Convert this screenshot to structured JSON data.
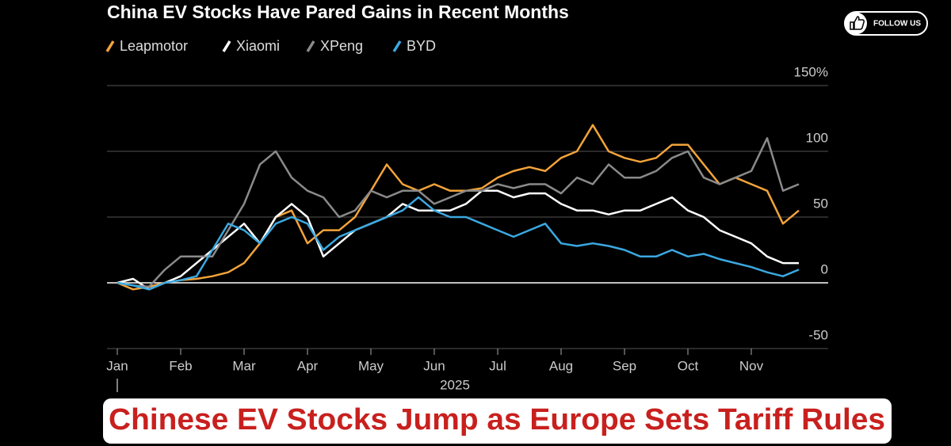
{
  "chart_data": {
    "type": "line",
    "title": "China EV Stocks Have Pared Gains in Recent Months",
    "categories": [
      "Jan",
      null,
      null,
      null,
      "Feb",
      null,
      null,
      null,
      "Mar",
      null,
      null,
      null,
      "Apr",
      null,
      null,
      null,
      "May",
      null,
      null,
      null,
      "Jun",
      null,
      null,
      null,
      "Jul",
      null,
      null,
      null,
      "Aug",
      null,
      null,
      null,
      "Sep",
      null,
      null,
      null,
      "Oct",
      null,
      null,
      null,
      "Nov",
      null,
      null,
      null
    ],
    "x_axis_label": "2025",
    "series": [
      {
        "name": "Leapmotor",
        "color": "#f2a33a",
        "values": [
          0,
          -5,
          -3,
          0,
          2,
          3,
          5,
          8,
          15,
          30,
          50,
          55,
          30,
          40,
          40,
          50,
          70,
          90,
          75,
          70,
          75,
          70,
          70,
          72,
          80,
          85,
          88,
          85,
          95,
          100,
          120,
          100,
          95,
          92,
          95,
          105,
          105,
          90,
          75,
          80,
          75,
          70,
          45,
          55
        ]
      },
      {
        "name": "Xiaomi",
        "color": "#ffffff",
        "values": [
          0,
          3,
          -5,
          0,
          5,
          15,
          25,
          35,
          45,
          30,
          50,
          60,
          50,
          20,
          30,
          40,
          45,
          50,
          60,
          55,
          55,
          55,
          60,
          70,
          70,
          65,
          68,
          68,
          60,
          55,
          55,
          52,
          55,
          55,
          60,
          65,
          55,
          50,
          40,
          35,
          30,
          20,
          15,
          15
        ]
      },
      {
        "name": "XPeng",
        "color": "#8a8a8a",
        "values": [
          0,
          -2,
          -3,
          10,
          20,
          20,
          20,
          40,
          60,
          90,
          100,
          80,
          70,
          65,
          50,
          55,
          70,
          65,
          70,
          70,
          60,
          65,
          70,
          70,
          75,
          72,
          75,
          75,
          68,
          80,
          75,
          90,
          80,
          80,
          85,
          95,
          100,
          80,
          75,
          80,
          85,
          110,
          70,
          75
        ]
      },
      {
        "name": "BYD",
        "color": "#3ba8e0",
        "values": [
          0,
          -2,
          -5,
          0,
          2,
          5,
          25,
          45,
          40,
          30,
          45,
          50,
          45,
          25,
          35,
          40,
          45,
          50,
          55,
          65,
          55,
          50,
          50,
          45,
          40,
          35,
          40,
          45,
          30,
          28,
          30,
          28,
          25,
          20,
          20,
          25,
          20,
          22,
          18,
          15,
          12,
          8,
          5,
          10
        ]
      }
    ],
    "ylim": [
      -50,
      150
    ],
    "yticks": [
      -50,
      0,
      50,
      100,
      {
        "value": 150,
        "label": "150%"
      }
    ],
    "grid": true
  },
  "banner": {
    "headline": "Chinese EV Stocks Jump as Europe Sets Tariff Rules"
  },
  "follow_button": {
    "label": "FOLLOW US"
  }
}
